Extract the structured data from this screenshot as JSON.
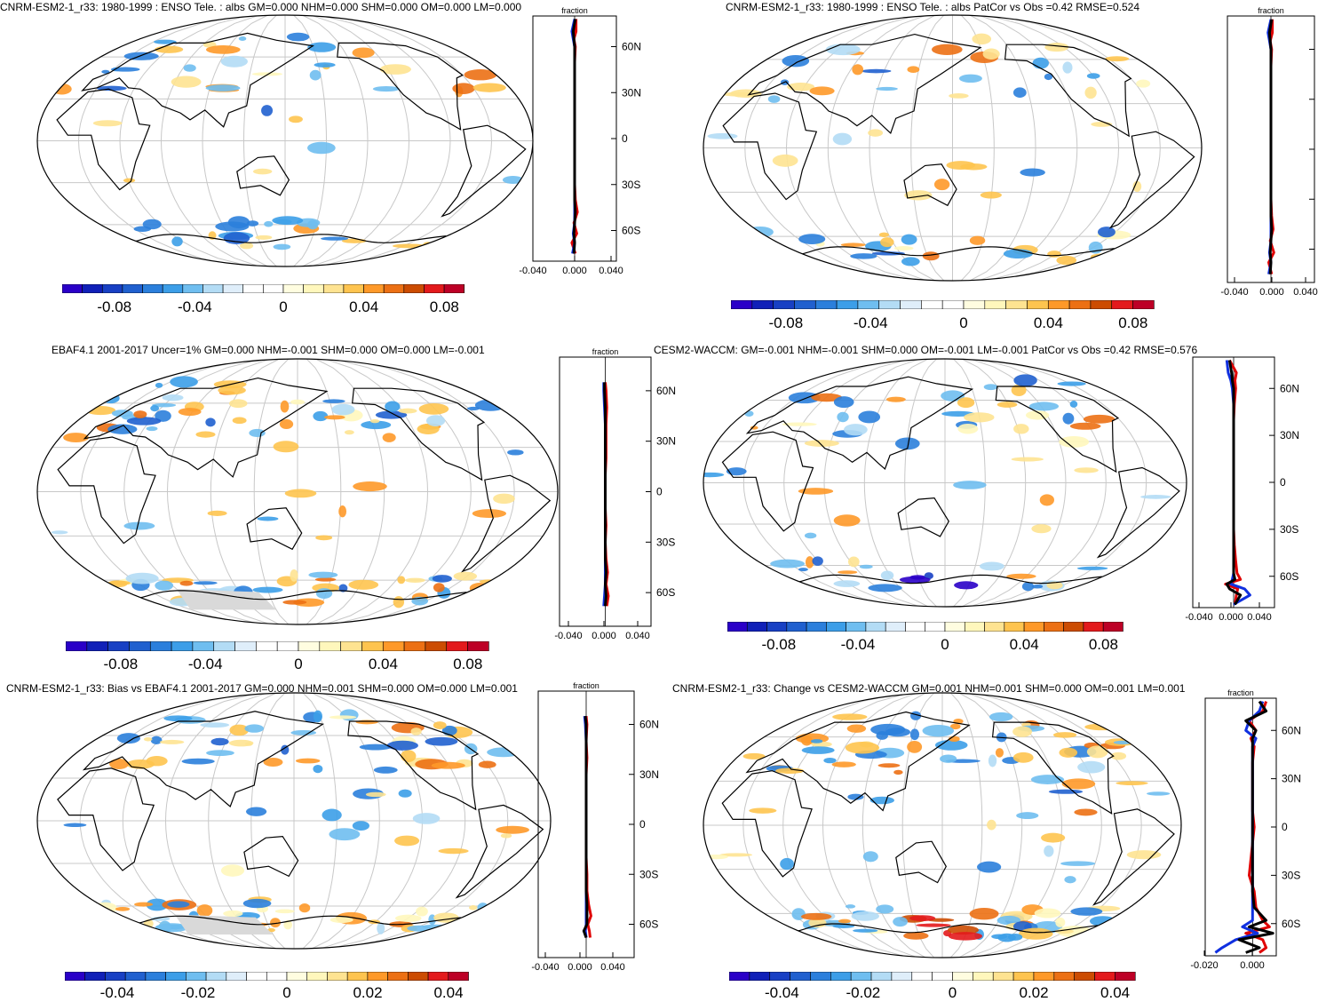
{
  "colors": {
    "positive_scale": [
      "#fff7bc",
      "#fee391",
      "#fec44f",
      "#fe9929",
      "#ec7014",
      "#cc4c02",
      "#e31a1c",
      "#bd0026"
    ],
    "negative_scale": [
      "#b3dcf5",
      "#6fbef0",
      "#3c9ee8",
      "#2b7fdc",
      "#2060cf",
      "#1840c4",
      "#1020b8",
      "#2a00c8"
    ],
    "land_masked": "#d9d9d9",
    "grid": "#c8c8c8",
    "series_red": "#e00000",
    "series_blue": "#1030e0",
    "series_black": "#000000"
  },
  "panels": [
    {
      "title": "CNRM-ESM2-1_r33: 1980-1999 : ENSO Tele. : albs GM=0.000 NHM=0.000 SHM=0.000 OM=0.000 LM=0.000",
      "colorbar_ticks": [
        "-0.08",
        "-0.04",
        "0",
        "0.04",
        "0.08"
      ],
      "zonal_title": "fraction",
      "zonal_xticks": [
        "-0.040",
        "0.000",
        "0.040"
      ],
      "zonal_latlabels": [
        "60N",
        "30N",
        "0",
        "30S",
        "60S"
      ]
    },
    {
      "title": "CNRM-ESM2-1_r33: 1980-1999 : ENSO Tele. : albs PatCor vs Obs =0.42 RMSE=0.524",
      "colorbar_ticks": [
        "-0.08",
        "-0.04",
        "0",
        "0.04",
        "0.08"
      ],
      "zonal_title": "fraction",
      "zonal_xticks": [
        "-0.040",
        "0.000",
        "0.040"
      ],
      "zonal_latlabels": []
    },
    {
      "title": "EBAF4.1 2001-2017 Uncer=1% GM=0.000 NHM=-0.001 SHM=0.000 OM=0.000 LM=-0.001",
      "colorbar_ticks": [
        "-0.08",
        "-0.04",
        "0",
        "0.04",
        "0.08"
      ],
      "zonal_title": "fraction",
      "zonal_xticks": [
        "-0.040",
        "0.000",
        "0.040"
      ],
      "zonal_latlabels": [
        "60N",
        "30N",
        "0",
        "30S",
        "60S"
      ]
    },
    {
      "title": "CESM2-WACCM: GM=-0.001 NHM=-0.001 SHM=0.000 OM=-0.001 LM=-0.001 PatCor vs Obs =0.42 RMSE=0.576",
      "colorbar_ticks": [
        "-0.08",
        "-0.04",
        "0",
        "0.04",
        "0.08"
      ],
      "zonal_title": "",
      "zonal_xticks": [
        "-0.040",
        "0.000",
        "0.040"
      ],
      "zonal_latlabels": [
        "60N",
        "30N",
        "0",
        "30S",
        "60S"
      ]
    },
    {
      "title": "CNRM-ESM2-1_r33: Bias vs EBAF4.1 2001-2017 GM=0.000 NHM=0.001 SHM=0.000 OM=0.000 LM=0.001",
      "colorbar_ticks": [
        "-0.04",
        "-0.02",
        "0",
        "0.02",
        "0.04"
      ],
      "zonal_title": "fraction",
      "zonal_xticks": [
        "-0.040",
        "0.000",
        "0.040"
      ],
      "zonal_latlabels": [
        "60N",
        "30N",
        "0",
        "30S",
        "60S"
      ]
    },
    {
      "title": "CNRM-ESM2-1_r33: Change vs CESM2-WACCM GM=0.001 NHM=0.001 SHM=0.000 OM=0.001 LM=0.001",
      "colorbar_ticks": [
        "-0.04",
        "-0.02",
        "0",
        "0.02",
        "0.04"
      ],
      "zonal_title": "fraction",
      "zonal_xticks": [
        "-0.020",
        "0.000"
      ],
      "zonal_latlabels": [
        "60N",
        "30N",
        "0",
        "30S",
        "60S"
      ]
    }
  ],
  "chart_data": [
    {
      "type": "heatmap",
      "title": "CNRM-ESM2-1_r33: 1980-1999 : ENSO Tele. : albs GM=0.000 NHM=0.000 SHM=0.000 OM=0.000 LM=0.000",
      "colorbar": {
        "range": [
          -0.1,
          0.1
        ],
        "ticks": [
          -0.08,
          -0.04,
          0,
          0.04,
          0.08
        ]
      },
      "zonal_mean": {
        "xlabel": "fraction",
        "xlim": [
          -0.06,
          0.06
        ],
        "ylim": [
          -80,
          80
        ],
        "lat": [
          -75,
          -68,
          -62,
          -55,
          -48,
          -40,
          -30,
          -20,
          -10,
          0,
          10,
          20,
          30,
          40,
          50,
          60,
          65,
          70,
          78
        ],
        "series": [
          {
            "values": [
              0.001,
              -0.004,
              0.003,
              -0.001,
              0.004,
              0.001,
              0.0,
              0.0,
              0.0,
              0.0,
              0.0,
              0.0,
              0.0,
              0.0,
              0.0,
              0.001,
              -0.001,
              0.002,
              0.002
            ]
          },
          {
            "values": [
              -0.003,
              0.0,
              -0.002,
              0.0,
              0.0,
              0.0,
              0.0,
              0.0,
              0.0,
              0.0,
              0.0,
              0.0,
              0.0,
              0.0,
              0.0,
              0.0,
              -0.002,
              -0.004,
              0.0
            ]
          },
          {
            "values": [
              -0.001,
              0.0,
              -0.001,
              0.0,
              0.001,
              0.0,
              0.0,
              0.0,
              0.0,
              0.0,
              0.0,
              0.0,
              0.0,
              0.0,
              0.0,
              0.0,
              -0.001,
              -0.002,
              0.001
            ]
          }
        ]
      }
    },
    {
      "type": "heatmap",
      "title": "CNRM-ESM2-1_r33: 1980-1999 : ENSO Tele. : albs PatCor vs Obs =0.42 RMSE=0.524",
      "colorbar": {
        "range": [
          -0.1,
          0.1
        ],
        "ticks": [
          -0.08,
          -0.04,
          0,
          0.04,
          0.08
        ]
      },
      "zonal_mean": {
        "xlabel": "fraction",
        "xlim": [
          -0.06,
          0.06
        ],
        "ylim": [
          -80,
          80
        ],
        "lat": [
          -75,
          -68,
          -62,
          -55,
          -48,
          -40,
          -30,
          -20,
          -10,
          0,
          10,
          20,
          30,
          40,
          50,
          60,
          65,
          70,
          78
        ],
        "series": [
          {
            "values": [
              0.001,
              -0.003,
              0.004,
              -0.001,
              0.003,
              0.001,
              0.0,
              0.0,
              0.0,
              0.0,
              0.0,
              0.0,
              0.0,
              0.0,
              0.0,
              0.001,
              -0.001,
              0.002,
              0.002
            ]
          },
          {
            "values": [
              -0.003,
              0.0,
              -0.002,
              0.0,
              0.0,
              0.0,
              0.0,
              0.0,
              0.0,
              0.0,
              0.0,
              0.0,
              0.0,
              0.0,
              0.0,
              0.0,
              -0.002,
              -0.004,
              0.0
            ]
          },
          {
            "values": [
              -0.001,
              0.0,
              -0.001,
              0.0,
              0.001,
              0.0,
              0.0,
              0.0,
              0.0,
              0.0,
              0.0,
              0.0,
              0.0,
              0.0,
              0.0,
              0.0,
              -0.001,
              -0.002,
              0.001
            ]
          }
        ]
      }
    },
    {
      "type": "heatmap",
      "title": "EBAF4.1 2001-2017 Uncer=1% GM=0.000 NHM=-0.001 SHM=0.000 OM=0.000 LM=-0.001",
      "colorbar": {
        "range": [
          -0.1,
          0.1
        ],
        "ticks": [
          -0.08,
          -0.04,
          0,
          0.04,
          0.08
        ]
      },
      "zonal_mean": {
        "xlabel": "fraction",
        "xlim": [
          -0.06,
          0.06
        ],
        "ylim": [
          -80,
          80
        ],
        "lat": [
          -68,
          -62,
          -55,
          -48,
          -40,
          -30,
          -20,
          -10,
          0,
          10,
          20,
          30,
          40,
          50,
          60,
          65
        ],
        "series": [
          {
            "values": [
              0.002,
              0.004,
              0.001,
              0.003,
              0.001,
              0.0,
              0.001,
              0.0,
              0.0,
              0.0,
              0.001,
              0.001,
              0.001,
              0.002,
              0.001,
              0.0
            ]
          },
          {
            "values": [
              -0.002,
              -0.001,
              0.0,
              0.0,
              0.0,
              0.0,
              0.0,
              0.0,
              0.0,
              0.0,
              0.0,
              0.0,
              0.0,
              -0.001,
              -0.002,
              -0.002
            ]
          },
          {
            "values": [
              0.0,
              0.001,
              0.0,
              0.001,
              0.0,
              0.0,
              0.0,
              0.0,
              0.0,
              0.0,
              0.0,
              0.0,
              0.0,
              0.0,
              -0.001,
              -0.001
            ]
          }
        ]
      }
    },
    {
      "type": "heatmap",
      "title": "CESM2-WACCM: GM=-0.001 NHM=-0.001 SHM=0.000 OM=-0.001 LM=-0.001 PatCor vs Obs =0.42 RMSE=0.576",
      "colorbar": {
        "range": [
          -0.1,
          0.1
        ],
        "ticks": [
          -0.08,
          -0.04,
          0,
          0.04,
          0.08
        ]
      },
      "zonal_mean": {
        "xlim": [
          -0.06,
          0.06
        ],
        "ylim": [
          -80,
          80
        ],
        "lat": [
          -78,
          -72,
          -68,
          -65,
          -62,
          -58,
          -50,
          -40,
          -30,
          -20,
          -10,
          0,
          10,
          20,
          30,
          40,
          50,
          60,
          65,
          70,
          78
        ],
        "series": [
          {
            "values": [
              0.002,
              0.004,
              0.006,
              -0.012,
              0.01,
              0.005,
              0.003,
              0.001,
              0.0,
              0.0,
              0.0,
              0.0,
              0.0,
              0.0,
              0.0,
              0.0,
              0.001,
              0.003,
              0.002,
              0.004,
              -0.006
            ]
          },
          {
            "values": [
              0.0,
              0.024,
              0.016,
              -0.004,
              -0.002,
              0.0,
              0.0,
              0.0,
              0.0,
              0.0,
              0.0,
              0.0,
              0.0,
              0.0,
              0.0,
              0.0,
              0.0,
              -0.002,
              -0.004,
              -0.008,
              -0.01
            ]
          },
          {
            "values": [
              0.002,
              0.01,
              -0.006,
              -0.01,
              0.002,
              0.0,
              0.0,
              0.0,
              0.0,
              0.0,
              0.0,
              0.0,
              0.0,
              0.0,
              0.0,
              0.0,
              0.0,
              0.0,
              -0.002,
              -0.003,
              -0.006
            ]
          }
        ]
      }
    },
    {
      "type": "heatmap",
      "title": "CNRM-ESM2-1_r33: Bias vs EBAF4.1 2001-2017 GM=0.000 NHM=0.001 SHM=0.000 OM=0.000 LM=0.001",
      "colorbar": {
        "range": [
          -0.05,
          0.05
        ],
        "ticks": [
          -0.04,
          -0.02,
          0,
          0.02,
          0.04
        ]
      },
      "zonal_mean": {
        "xlabel": "fraction",
        "xlim": [
          -0.06,
          0.06
        ],
        "ylim": [
          -80,
          80
        ],
        "lat": [
          -68,
          -64,
          -60,
          -55,
          -48,
          -40,
          -30,
          -20,
          -10,
          0,
          10,
          20,
          30,
          40,
          50,
          60,
          65
        ],
        "series": [
          {
            "values": [
              0.005,
              0.004,
              0.002,
              0.006,
              0.003,
              0.001,
              0.001,
              0.0,
              0.0,
              0.0,
              0.0,
              0.0,
              0.0,
              0.001,
              0.0,
              0.001,
              0.0
            ]
          },
          {
            "values": [
              0.0,
              -0.001,
              0.0,
              0.0,
              0.0,
              0.0,
              0.0,
              0.0,
              0.0,
              0.0,
              0.0,
              0.0,
              0.0,
              0.0,
              0.0,
              -0.001,
              -0.002
            ]
          },
          {
            "values": [
              0.0,
              -0.003,
              0.001,
              0.001,
              0.001,
              0.0,
              0.0,
              0.0,
              0.0,
              0.0,
              0.0,
              0.0,
              0.0,
              0.0,
              0.0,
              0.0,
              -0.001
            ]
          }
        ]
      }
    },
    {
      "type": "heatmap",
      "title": "CNRM-ESM2-1_r33: Change vs CESM2-WACCM GM=0.001 NHM=0.001 SHM=0.000 OM=0.001 LM=0.001",
      "colorbar": {
        "range": [
          -0.05,
          0.05
        ],
        "ticks": [
          -0.04,
          -0.02,
          0,
          0.02,
          0.04
        ]
      },
      "zonal_mean": {
        "xlabel": "fraction",
        "xlim": [
          -0.028,
          0.014
        ],
        "ylim": [
          -80,
          80
        ],
        "lat": [
          -78,
          -75,
          -70,
          -66,
          -62,
          -58,
          -50,
          -40,
          -30,
          -20,
          -10,
          0,
          10,
          20,
          30,
          40,
          50,
          55,
          60,
          66,
          72,
          78
        ],
        "series": [
          {
            "values": [
              0.004,
              0.008,
              0.006,
              -0.004,
              0.01,
              0.006,
              0.002,
              0.001,
              -0.002,
              -0.001,
              0.0,
              0.001,
              0.0,
              0.0,
              0.0,
              0.0,
              0.001,
              -0.001,
              0.002,
              -0.002,
              0.006,
              0.008
            ]
          },
          {
            "values": [
              -0.022,
              -0.018,
              -0.01,
              0.003,
              -0.006,
              0.0,
              0.0,
              0.0,
              0.0,
              0.0,
              0.0,
              0.0,
              0.0,
              0.0,
              0.0,
              0.0,
              0.0,
              0.002,
              -0.004,
              -0.002,
              0.004,
              0.006
            ]
          },
          {
            "values": [
              -0.004,
              0.004,
              -0.008,
              0.012,
              -0.002,
              0.008,
              0.001,
              0.0,
              0.0,
              0.0,
              0.0,
              0.0,
              0.0,
              0.0,
              0.0,
              0.0,
              0.0,
              0.0,
              0.002,
              -0.004,
              0.008,
              0.004
            ]
          }
        ]
      }
    }
  ]
}
